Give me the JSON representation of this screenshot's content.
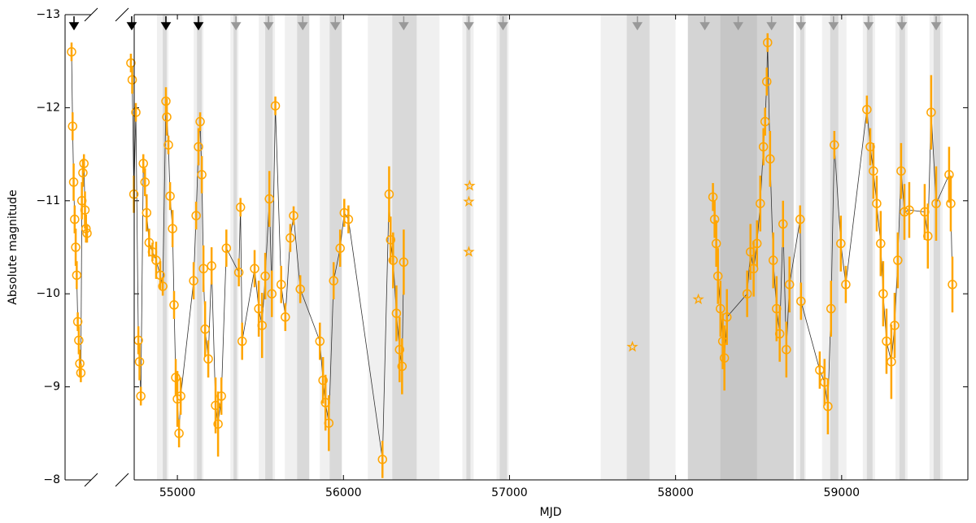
{
  "chart_data": [
    {
      "type": "scatter",
      "ylabel": "Absolute magnitude",
      "ylim": [
        -13,
        -8
      ],
      "y_inverted": true,
      "yticks": [
        {
          "value": -13,
          "label": "−13"
        },
        {
          "value": -12,
          "label": "−12"
        },
        {
          "value": -11,
          "label": "−11"
        },
        {
          "value": -10,
          "label": "−10"
        },
        {
          "value": -9,
          "label": "−9"
        },
        {
          "value": -8,
          "label": "−8"
        }
      ],
      "color": "#ffa500",
      "values": [
        -12.6,
        -11.8,
        -11.2,
        -10.8,
        -10.5,
        -10.2,
        -9.7,
        -9.5,
        -9.25,
        -9.15,
        -11.0,
        -11.3,
        -11.4,
        -10.9,
        -10.7,
        -10.65
      ],
      "errors": [
        0.1,
        0.15,
        0.2,
        0.15,
        0.2,
        0.15,
        0.1,
        0.15,
        0.15,
        0.1,
        0.2,
        0.15,
        0.1,
        0.2,
        0.15,
        0.1
      ],
      "arrows": [
        {
          "color": "#000000"
        }
      ]
    },
    {
      "type": "scatter",
      "xlabel": "MJD",
      "xlim": [
        54740,
        59760
      ],
      "xticks": [
        55000,
        56000,
        57000,
        58000,
        59000
      ],
      "ylim": [
        -13,
        -8
      ],
      "y_inverted": true,
      "yticks": [
        -13,
        -12,
        -11,
        -10,
        -9,
        -8
      ],
      "series": [
        {
          "color": "#ffa500",
          "x": [
            54720,
            54728,
            54738,
            54750,
            54765,
            54772,
            54780,
            54795,
            54805,
            54815,
            54830,
            54850,
            54872,
            54897,
            54912,
            54931,
            54936,
            54946,
            54956,
            54971,
            54980,
            54990,
            55000,
            55010,
            55020,
            55098,
            55113,
            55127,
            55137,
            55147,
            55157,
            55167,
            55186,
            55206,
            55230,
            55245,
            55265,
            55295,
            55370,
            55380,
            55390,
            55465,
            55490,
            55510,
            55529,
            55554,
            55569,
            55590,
            55625,
            55650,
            55680,
            55700,
            55740,
            55858,
            55877,
            55892,
            55912,
            55941,
            55980,
            56005,
            56030,
            56235,
            56275,
            56284,
            56299,
            56319,
            56338,
            56353,
            56363
          ],
          "values": [
            -12.48,
            -12.3,
            -11.07,
            -11.95,
            -9.5,
            -9.27,
            -8.9,
            -11.4,
            -11.2,
            -10.87,
            -10.55,
            -10.45,
            -10.36,
            -10.2,
            -10.08,
            -12.07,
            -11.9,
            -11.6,
            -11.05,
            -10.7,
            -9.88,
            -9.1,
            -8.87,
            -8.5,
            -8.9,
            -10.14,
            -10.84,
            -11.58,
            -11.85,
            -11.28,
            -10.27,
            -9.62,
            -9.3,
            -10.3,
            -8.8,
            -8.6,
            -8.9,
            -10.49,
            -10.23,
            -10.93,
            -9.49,
            -10.27,
            -9.84,
            -9.66,
            -10.19,
            -11.02,
            -10.0,
            -12.02,
            -10.1,
            -9.75,
            -10.6,
            -10.84,
            -10.05,
            -9.49,
            -9.07,
            -8.83,
            -8.61,
            -10.14,
            -10.49,
            -10.87,
            -10.8,
            -8.22,
            -11.07,
            -10.58,
            -10.36,
            -9.79,
            -9.4,
            -9.22,
            -10.34
          ],
          "errors": [
            0.1,
            0.15,
            0.2,
            0.1,
            0.15,
            0.2,
            0.1,
            0.1,
            0.15,
            0.2,
            0.15,
            0.1,
            0.2,
            0.15,
            0.1,
            0.15,
            0.2,
            0.1,
            0.15,
            0.2,
            0.15,
            0.2,
            0.3,
            0.15,
            0.2,
            0.2,
            0.15,
            0.2,
            0.1,
            0.2,
            0.25,
            0.3,
            0.2,
            0.2,
            0.3,
            0.35,
            0.2,
            0.2,
            0.15,
            0.1,
            0.2,
            0.2,
            0.3,
            0.35,
            0.25,
            0.3,
            0.25,
            0.1,
            0.2,
            0.15,
            0.15,
            0.1,
            0.15,
            0.2,
            0.25,
            0.3,
            0.3,
            0.2,
            0.2,
            0.15,
            0.15,
            0.2,
            0.3,
            0.25,
            0.3,
            0.3,
            0.35,
            0.3,
            0.35
          ]
        },
        {
          "color": "#ffa500",
          "x": [
            58225,
            58235,
            58245,
            58255,
            58270,
            58284,
            58294,
            58309,
            58431,
            58451,
            58470,
            58490,
            58510,
            58529,
            58539,
            58549,
            58554,
            58569,
            58588,
            58608,
            58627,
            58647,
            58667,
            58686,
            58750,
            58755,
            58868,
            58897,
            58917,
            58936,
            58956,
            58995,
            59025,
            59152,
            59172,
            59191,
            59211,
            59235,
            59250,
            59270,
            59299,
            59319,
            59338,
            59358,
            59378,
            59407,
            59500,
            59519,
            59539,
            59569,
            59647,
            59657,
            59667
          ],
          "values": [
            -11.04,
            -10.8,
            -10.54,
            -10.19,
            -9.84,
            -9.49,
            -9.31,
            -9.75,
            -10.0,
            -10.45,
            -10.27,
            -10.54,
            -10.97,
            -11.58,
            -11.85,
            -12.28,
            -12.7,
            -11.45,
            -10.36,
            -9.84,
            -9.57,
            -10.75,
            -9.4,
            -10.1,
            -10.8,
            -9.92,
            -9.18,
            -9.05,
            -8.79,
            -9.84,
            -11.6,
            -10.54,
            -10.1,
            -11.98,
            -11.58,
            -11.32,
            -10.97,
            -10.54,
            -10.0,
            -9.49,
            -9.27,
            -9.66,
            -10.36,
            -11.32,
            -10.88,
            -10.9,
            -10.88,
            -10.62,
            -11.95,
            -10.97,
            -11.28,
            -10.97,
            -10.1
          ],
          "errors": [
            0.15,
            0.2,
            0.25,
            0.3,
            0.3,
            0.3,
            0.35,
            0.3,
            0.25,
            0.3,
            0.3,
            0.25,
            0.3,
            0.2,
            0.15,
            0.15,
            0.1,
            0.3,
            0.3,
            0.35,
            0.3,
            0.25,
            0.3,
            0.3,
            0.15,
            0.2,
            0.2,
            0.25,
            0.3,
            0.3,
            0.15,
            0.3,
            0.2,
            0.15,
            0.2,
            0.3,
            0.3,
            0.35,
            0.35,
            0.35,
            0.4,
            0.35,
            0.3,
            0.3,
            0.3,
            0.3,
            0.3,
            0.35,
            0.4,
            0.4,
            0.3,
            0.3,
            0.3
          ]
        }
      ],
      "stars": {
        "color": "#ffa500",
        "x": [
          56760,
          56755,
          56755,
          57740,
          58137
        ],
        "values": [
          -11.16,
          -10.99,
          -10.45,
          -9.43,
          -9.94
        ]
      },
      "spans": [
        {
          "x0": 54877,
          "x1": 54946,
          "color": "#f0f0f0"
        },
        {
          "x0": 54912,
          "x1": 54936,
          "color": "#d9d9d9"
        },
        {
          "x0": 55098,
          "x1": 55157,
          "color": "#f0f0f0"
        },
        {
          "x0": 55118,
          "x1": 55147,
          "color": "#d9d9d9"
        },
        {
          "x0": 55319,
          "x1": 55368,
          "color": "#f0f0f0"
        },
        {
          "x0": 55338,
          "x1": 55358,
          "color": "#d9d9d9"
        },
        {
          "x0": 55490,
          "x1": 55588,
          "color": "#f0f0f0"
        },
        {
          "x0": 55529,
          "x1": 55574,
          "color": "#d9d9d9"
        },
        {
          "x0": 55647,
          "x1": 55794,
          "color": "#f0f0f0"
        },
        {
          "x0": 55721,
          "x1": 55794,
          "color": "#d9d9d9"
        },
        {
          "x0": 55858,
          "x1": 55990,
          "color": "#f0f0f0"
        },
        {
          "x0": 55917,
          "x1": 55990,
          "color": "#d9d9d9"
        },
        {
          "x0": 56147,
          "x1": 56578,
          "color": "#f0f0f0"
        },
        {
          "x0": 56294,
          "x1": 56441,
          "color": "#d9d9d9"
        },
        {
          "x0": 56716,
          "x1": 56784,
          "color": "#f0f0f0"
        },
        {
          "x0": 56740,
          "x1": 56765,
          "color": "#d9d9d9"
        },
        {
          "x0": 56922,
          "x1": 56995,
          "color": "#f0f0f0"
        },
        {
          "x0": 56941,
          "x1": 56985,
          "color": "#d9d9d9"
        },
        {
          "x0": 57549,
          "x1": 58000,
          "color": "#f0f0f0"
        },
        {
          "x0": 57706,
          "x1": 57843,
          "color": "#d9d9d9"
        },
        {
          "x0": 58074,
          "x1": 58711,
          "color": "#d4d4d4"
        },
        {
          "x0": 58270,
          "x1": 58490,
          "color": "#c6c6c6"
        },
        {
          "x0": 58725,
          "x1": 58784,
          "color": "#f0f0f0"
        },
        {
          "x0": 58750,
          "x1": 58775,
          "color": "#d9d9d9"
        },
        {
          "x0": 58882,
          "x1": 59029,
          "color": "#f0f0f0"
        },
        {
          "x0": 58931,
          "x1": 58980,
          "color": "#d9d9d9"
        },
        {
          "x0": 59127,
          "x1": 59201,
          "color": "#f0f0f0"
        },
        {
          "x0": 59152,
          "x1": 59186,
          "color": "#d9d9d9"
        },
        {
          "x0": 59324,
          "x1": 59397,
          "color": "#f0f0f0"
        },
        {
          "x0": 59348,
          "x1": 59382,
          "color": "#d9d9d9"
        },
        {
          "x0": 59529,
          "x1": 59608,
          "color": "#f0f0f0"
        },
        {
          "x0": 59554,
          "x1": 59593,
          "color": "#d9d9d9"
        }
      ],
      "arrows": [
        {
          "x": 54725,
          "color": "#000000"
        },
        {
          "x": 54931,
          "color": "#000000"
        },
        {
          "x": 55127,
          "color": "#000000"
        },
        {
          "x": 55353,
          "color": "#999999"
        },
        {
          "x": 55549,
          "color": "#999999"
        },
        {
          "x": 55755,
          "color": "#999999"
        },
        {
          "x": 55951,
          "color": "#999999"
        },
        {
          "x": 56363,
          "color": "#999999"
        },
        {
          "x": 56755,
          "color": "#999999"
        },
        {
          "x": 56961,
          "color": "#999999"
        },
        {
          "x": 57770,
          "color": "#999999"
        },
        {
          "x": 58176,
          "color": "#999999"
        },
        {
          "x": 58377,
          "color": "#999999"
        },
        {
          "x": 58578,
          "color": "#999999"
        },
        {
          "x": 58755,
          "color": "#999999"
        },
        {
          "x": 58951,
          "color": "#999999"
        },
        {
          "x": 59162,
          "color": "#999999"
        },
        {
          "x": 59363,
          "color": "#999999"
        },
        {
          "x": 59569,
          "color": "#999999"
        }
      ]
    }
  ]
}
